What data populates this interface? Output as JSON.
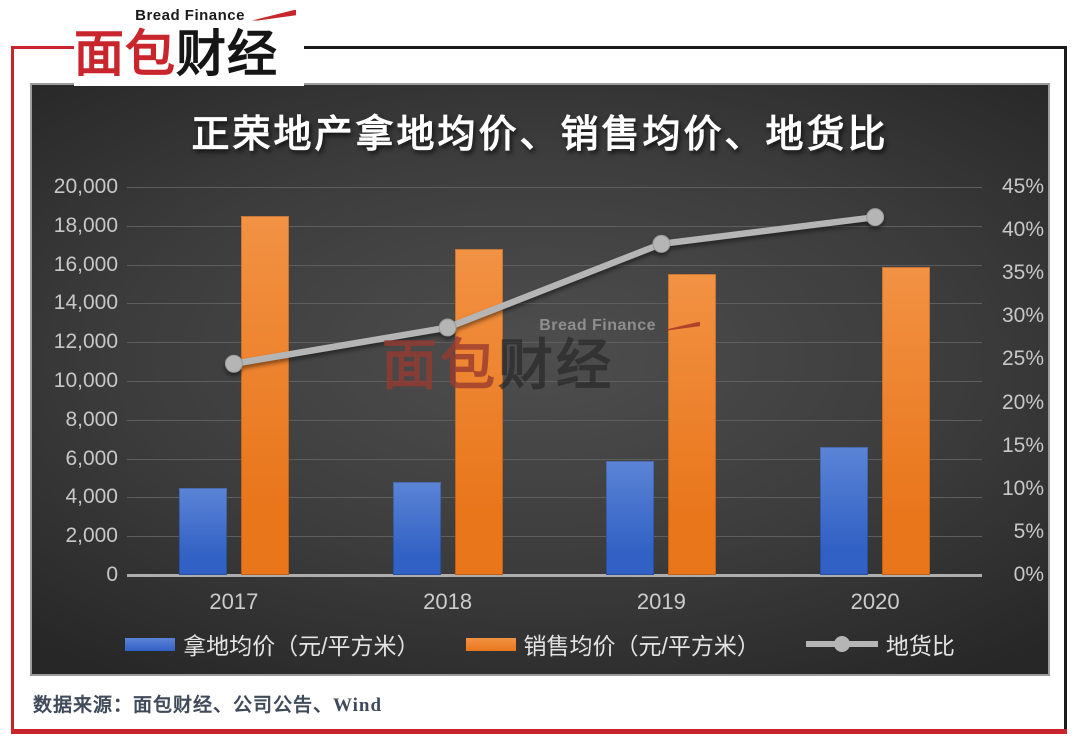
{
  "logo": {
    "brand_en": "Bread Finance",
    "brand_cn_red": "面包",
    "brand_cn_black": "财经"
  },
  "watermark": {
    "brand_en": "Bread Finance",
    "brand_cn_red": "面包",
    "brand_cn_black": "财经"
  },
  "source": {
    "text": "数据来源：面包财经、公司公告、Wind"
  },
  "colors": {
    "frame_red": "#c9252c",
    "frame_black": "#1a1a1a",
    "chart_background": "#3c3c3c",
    "gridline": "#5e5e5e",
    "axis_text": "#c7c7c7"
  },
  "chart_data": {
    "type": "bar+line combo",
    "title": "正荣地产拿地均价、销售均价、地货比",
    "categories": [
      "2017",
      "2018",
      "2019",
      "2020"
    ],
    "series": [
      {
        "name": "拿地均价（元/平方米）",
        "type": "bar",
        "axis": "left",
        "color": "#3161c4",
        "color_top": "#5b84d6",
        "values": [
          4500,
          4800,
          5900,
          6600
        ]
      },
      {
        "name": "销售均价（元/平方米）",
        "type": "bar",
        "axis": "left",
        "color": "#e9761b",
        "color_top": "#f29244",
        "values": [
          18500,
          16800,
          15500,
          15900
        ]
      },
      {
        "name": "地货比",
        "type": "line",
        "axis": "right",
        "color": "#b5b5b5",
        "values": [
          24.5,
          28.7,
          38.4,
          41.5
        ]
      }
    ],
    "left_axis": {
      "min": 0,
      "max": 20000,
      "step": 2000,
      "tick_labels": [
        "0",
        "2,000",
        "4,000",
        "6,000",
        "8,000",
        "10,000",
        "12,000",
        "14,000",
        "16,000",
        "18,000",
        "20,000"
      ]
    },
    "right_axis": {
      "min": 0,
      "max": 45,
      "step": 5,
      "tick_labels": [
        "0%",
        "5%",
        "10%",
        "15%",
        "20%",
        "25%",
        "30%",
        "35%",
        "40%",
        "45%"
      ]
    },
    "legend_position": "bottom",
    "grid": true
  }
}
